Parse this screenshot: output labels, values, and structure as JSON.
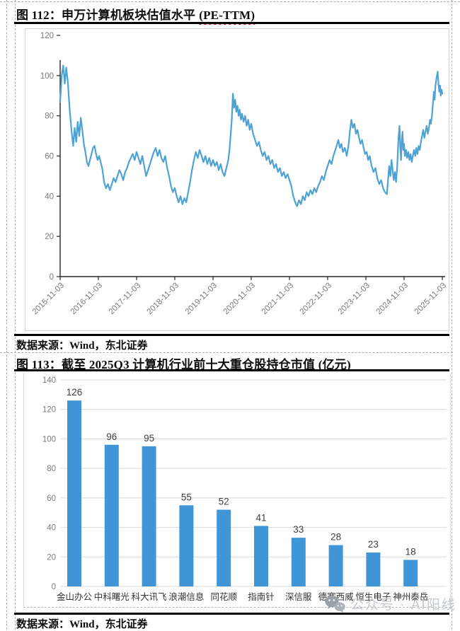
{
  "figures": {
    "fig112": {
      "label": "图 112：",
      "title": "申万计算机板块估值水平",
      "suffix": "(PE-TTM)",
      "source": "数据来源：Wind，东北证券"
    },
    "fig113": {
      "label": "图 113：",
      "title": "截至 2025Q3 计算机行业前十大重仓股持仓市值 (亿元)",
      "source": "数据来源：Wind，东北证券"
    }
  },
  "watermark": {
    "icon": "wechat-chat-bubbles-icon",
    "text": "公众号 · AI阳线"
  },
  "colors": {
    "line": "#4FA3D4",
    "bar": "#3F95D6",
    "grid": "#D9D9D9",
    "axis": "#262626",
    "axis_label": "#7A7A7A",
    "rule": "#000000",
    "wavy_underline": "#C00000",
    "watermark_text": "#C4C9CE",
    "watermark_icon": "#9AA2A9"
  },
  "chart_data": [
    {
      "type": "line",
      "title": "申万计算机板块估值水平 (PE-TTM)",
      "series_name": "PE-TTM",
      "ylim": [
        0,
        120
      ],
      "yticks": [
        0,
        20,
        40,
        60,
        80,
        100,
        120
      ],
      "x_tick_labels": [
        "2015-11-03",
        "2016-11-03",
        "2017-11-03",
        "2018-11-03",
        "2019-11-03",
        "2020-11-03",
        "2021-11-03",
        "2022-11-03",
        "2023-11-03",
        "2024-11-03",
        "2025-11-03"
      ],
      "grid": false,
      "legend": "none",
      "line_color": "#4FA3D4",
      "points": [
        [
          0.0,
          87
        ],
        [
          0.004,
          100
        ],
        [
          0.008,
          105
        ],
        [
          0.012,
          96
        ],
        [
          0.016,
          104
        ],
        [
          0.02,
          97
        ],
        [
          0.025,
          83
        ],
        [
          0.03,
          72
        ],
        [
          0.034,
          65
        ],
        [
          0.038,
          74
        ],
        [
          0.042,
          67
        ],
        [
          0.046,
          77
        ],
        [
          0.05,
          70
        ],
        [
          0.054,
          79
        ],
        [
          0.058,
          73
        ],
        [
          0.062,
          66
        ],
        [
          0.066,
          62
        ],
        [
          0.07,
          57
        ],
        [
          0.074,
          55
        ],
        [
          0.078,
          58
        ],
        [
          0.082,
          61
        ],
        [
          0.086,
          64
        ],
        [
          0.09,
          65
        ],
        [
          0.094,
          61
        ],
        [
          0.098,
          58
        ],
        [
          0.102,
          60
        ],
        [
          0.106,
          57
        ],
        [
          0.11,
          54
        ],
        [
          0.115,
          47
        ],
        [
          0.12,
          44
        ],
        [
          0.125,
          46
        ],
        [
          0.13,
          43
        ],
        [
          0.135,
          46
        ],
        [
          0.14,
          49
        ],
        [
          0.145,
          47
        ],
        [
          0.15,
          50
        ],
        [
          0.155,
          53
        ],
        [
          0.16,
          51
        ],
        [
          0.165,
          48
        ],
        [
          0.17,
          52
        ],
        [
          0.175,
          54
        ],
        [
          0.18,
          57
        ],
        [
          0.185,
          59
        ],
        [
          0.19,
          61
        ],
        [
          0.195,
          58
        ],
        [
          0.2,
          62
        ],
        [
          0.205,
          59
        ],
        [
          0.21,
          56
        ],
        [
          0.215,
          60
        ],
        [
          0.22,
          55
        ],
        [
          0.225,
          50
        ],
        [
          0.23,
          53
        ],
        [
          0.235,
          56
        ],
        [
          0.24,
          59
        ],
        [
          0.245,
          62
        ],
        [
          0.25,
          64
        ],
        [
          0.255,
          60
        ],
        [
          0.26,
          63
        ],
        [
          0.265,
          59
        ],
        [
          0.27,
          57
        ],
        [
          0.275,
          60
        ],
        [
          0.28,
          54
        ],
        [
          0.285,
          50
        ],
        [
          0.29,
          45
        ],
        [
          0.295,
          42
        ],
        [
          0.3,
          44
        ],
        [
          0.305,
          40
        ],
        [
          0.31,
          37
        ],
        [
          0.315,
          40
        ],
        [
          0.32,
          36
        ],
        [
          0.325,
          39
        ],
        [
          0.33,
          37
        ],
        [
          0.335,
          42
        ],
        [
          0.34,
          47
        ],
        [
          0.345,
          53
        ],
        [
          0.35,
          58
        ],
        [
          0.355,
          62
        ],
        [
          0.36,
          59
        ],
        [
          0.365,
          63
        ],
        [
          0.37,
          60
        ],
        [
          0.375,
          57
        ],
        [
          0.38,
          60
        ],
        [
          0.385,
          56
        ],
        [
          0.39,
          59
        ],
        [
          0.395,
          55
        ],
        [
          0.4,
          58
        ],
        [
          0.405,
          55
        ],
        [
          0.41,
          57
        ],
        [
          0.415,
          53
        ],
        [
          0.42,
          56
        ],
        [
          0.425,
          52
        ],
        [
          0.43,
          50
        ],
        [
          0.435,
          54
        ],
        [
          0.44,
          58
        ],
        [
          0.443,
          63
        ],
        [
          0.446,
          70
        ],
        [
          0.449,
          78
        ],
        [
          0.452,
          91
        ],
        [
          0.455,
          84
        ],
        [
          0.458,
          88
        ],
        [
          0.461,
          82
        ],
        [
          0.464,
          85
        ],
        [
          0.467,
          80
        ],
        [
          0.47,
          83
        ],
        [
          0.473,
          78
        ],
        [
          0.476,
          81
        ],
        [
          0.48,
          77
        ],
        [
          0.484,
          80
        ],
        [
          0.488,
          75
        ],
        [
          0.492,
          78
        ],
        [
          0.496,
          73
        ],
        [
          0.5,
          76
        ],
        [
          0.505,
          71
        ],
        [
          0.51,
          68
        ],
        [
          0.515,
          65
        ],
        [
          0.52,
          67
        ],
        [
          0.525,
          63
        ],
        [
          0.53,
          60
        ],
        [
          0.535,
          62
        ],
        [
          0.54,
          58
        ],
        [
          0.545,
          60
        ],
        [
          0.55,
          56
        ],
        [
          0.555,
          58
        ],
        [
          0.56,
          54
        ],
        [
          0.565,
          56
        ],
        [
          0.57,
          52
        ],
        [
          0.575,
          54
        ],
        [
          0.58,
          50
        ],
        [
          0.585,
          52
        ],
        [
          0.59,
          49
        ],
        [
          0.595,
          51
        ],
        [
          0.6,
          48
        ],
        [
          0.605,
          45
        ],
        [
          0.61,
          40
        ],
        [
          0.615,
          37
        ],
        [
          0.62,
          35
        ],
        [
          0.625,
          38
        ],
        [
          0.63,
          36
        ],
        [
          0.635,
          40
        ],
        [
          0.64,
          38
        ],
        [
          0.645,
          42
        ],
        [
          0.65,
          40
        ],
        [
          0.655,
          43
        ],
        [
          0.66,
          41
        ],
        [
          0.665,
          44
        ],
        [
          0.67,
          42
        ],
        [
          0.675,
          45
        ],
        [
          0.68,
          47
        ],
        [
          0.685,
          50
        ],
        [
          0.69,
          48
        ],
        [
          0.695,
          52
        ],
        [
          0.7,
          55
        ],
        [
          0.705,
          58
        ],
        [
          0.71,
          56
        ],
        [
          0.715,
          60
        ],
        [
          0.72,
          63
        ],
        [
          0.725,
          66
        ],
        [
          0.728,
          68
        ],
        [
          0.732,
          64
        ],
        [
          0.736,
          66
        ],
        [
          0.74,
          62
        ],
        [
          0.745,
          64
        ],
        [
          0.75,
          60
        ],
        [
          0.755,
          66
        ],
        [
          0.758,
          72
        ],
        [
          0.762,
          78
        ],
        [
          0.766,
          74
        ],
        [
          0.77,
          76
        ],
        [
          0.774,
          71
        ],
        [
          0.778,
          73
        ],
        [
          0.782,
          69
        ],
        [
          0.786,
          66
        ],
        [
          0.79,
          68
        ],
        [
          0.794,
          64
        ],
        [
          0.798,
          61
        ],
        [
          0.802,
          62
        ],
        [
          0.806,
          58
        ],
        [
          0.81,
          60
        ],
        [
          0.815,
          55
        ],
        [
          0.82,
          52
        ],
        [
          0.825,
          54
        ],
        [
          0.83,
          49
        ],
        [
          0.835,
          46
        ],
        [
          0.84,
          48
        ],
        [
          0.845,
          44
        ],
        [
          0.85,
          42
        ],
        [
          0.855,
          41
        ],
        [
          0.858,
          48
        ],
        [
          0.861,
          55
        ],
        [
          0.864,
          50
        ],
        [
          0.867,
          58
        ],
        [
          0.87,
          53
        ],
        [
          0.873,
          48
        ],
        [
          0.876,
          52
        ],
        [
          0.879,
          47
        ],
        [
          0.882,
          55
        ],
        [
          0.885,
          68
        ],
        [
          0.888,
          75
        ],
        [
          0.89,
          64
        ],
        [
          0.892,
          58
        ],
        [
          0.894,
          68
        ],
        [
          0.896,
          72
        ],
        [
          0.898,
          63
        ],
        [
          0.9,
          66
        ],
        [
          0.902,
          60
        ],
        [
          0.905,
          63
        ],
        [
          0.908,
          59
        ],
        [
          0.911,
          62
        ],
        [
          0.914,
          58
        ],
        [
          0.917,
          61
        ],
        [
          0.92,
          57
        ],
        [
          0.923,
          60
        ],
        [
          0.926,
          63
        ],
        [
          0.929,
          60
        ],
        [
          0.932,
          64
        ],
        [
          0.935,
          61
        ],
        [
          0.938,
          65
        ],
        [
          0.941,
          63
        ],
        [
          0.944,
          67
        ],
        [
          0.947,
          70
        ],
        [
          0.95,
          73
        ],
        [
          0.953,
          69
        ],
        [
          0.956,
          72
        ],
        [
          0.959,
          75
        ],
        [
          0.962,
          71
        ],
        [
          0.965,
          74
        ],
        [
          0.968,
          78
        ],
        [
          0.97,
          76
        ],
        [
          0.973,
          80
        ],
        [
          0.975,
          85
        ],
        [
          0.978,
          92
        ],
        [
          0.98,
          88
        ],
        [
          0.982,
          95
        ],
        [
          0.985,
          99
        ],
        [
          0.988,
          102
        ],
        [
          0.99,
          96
        ],
        [
          0.992,
          92
        ],
        [
          0.994,
          95
        ],
        [
          0.996,
          90
        ],
        [
          0.998,
          93
        ],
        [
          1.0,
          91
        ]
      ]
    },
    {
      "type": "bar",
      "title": "截至 2025Q3 计算机行业前十大重仓股持仓市值 (亿元)",
      "categories": [
        "金山办公",
        "中科曙光",
        "科大讯飞",
        "浪潮信息",
        "同花顺",
        "指南针",
        "深信服",
        "德赛西威",
        "恒生电子",
        "神州泰岳"
      ],
      "values": [
        126,
        96,
        95,
        55,
        52,
        41,
        33,
        28,
        23,
        18
      ],
      "ylim": [
        0,
        140
      ],
      "yticks": [
        0,
        20,
        40,
        60,
        80,
        100,
        120,
        140
      ],
      "grid": true,
      "legend": "none",
      "bar_color": "#3F95D6",
      "value_labels": true
    }
  ]
}
